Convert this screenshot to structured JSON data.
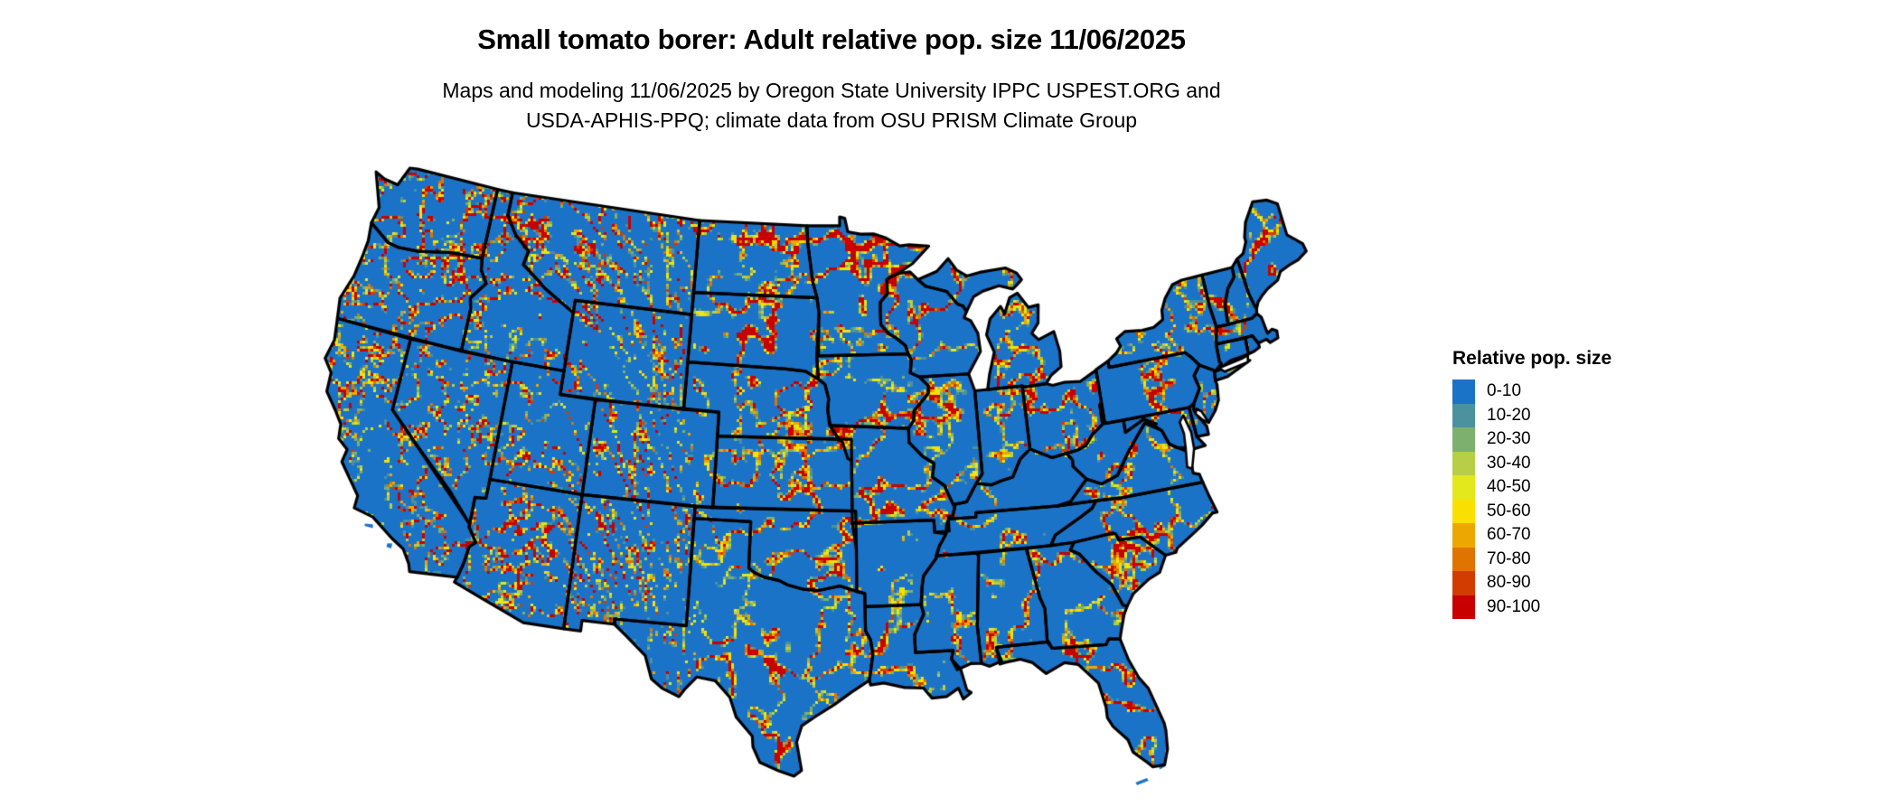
{
  "title": "Small tomato borer: Adult relative pop. size 11/06/2025",
  "subtitle": {
    "line1": "Maps and modeling 11/06/2025 by Oregon State University IPPC USPEST.ORG and",
    "line2": "USDA-APHIS-PPQ; climate data from OSU PRISM Climate Group"
  },
  "legend": {
    "title": "Relative pop. size",
    "items": [
      {
        "label": "0-10",
        "color": "#1b73c8"
      },
      {
        "label": "10-20",
        "color": "#4b919e"
      },
      {
        "label": "20-30",
        "color": "#7db06f"
      },
      {
        "label": "30-40",
        "color": "#b6cf46"
      },
      {
        "label": "40-50",
        "color": "#e3e81c"
      },
      {
        "label": "50-60",
        "color": "#f9e000"
      },
      {
        "label": "60-70",
        "color": "#eda800"
      },
      {
        "label": "70-80",
        "color": "#e07400"
      },
      {
        "label": "80-90",
        "color": "#d23c00"
      },
      {
        "label": "90-100",
        "color": "#c80000"
      }
    ]
  },
  "map": {
    "region": "Contiguous United States with state boundaries",
    "value_shown": "Adult relative population size (0-100)",
    "base_color": "#1b73c8",
    "border_color": "#000000",
    "water_color": "#ffffff",
    "background_color": "#ffffff"
  }
}
